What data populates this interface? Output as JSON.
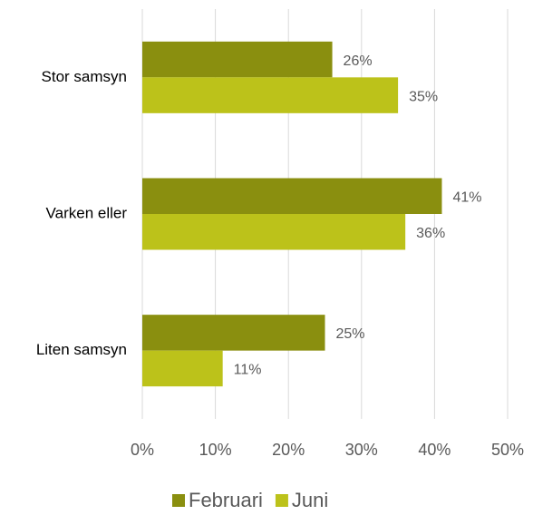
{
  "chart_data": {
    "type": "bar",
    "orientation": "horizontal",
    "categories": [
      "Stor samsyn",
      "Varken eller",
      "Liten samsyn"
    ],
    "series": [
      {
        "name": "Februari",
        "color": "#8a8f0f",
        "values": [
          26,
          41,
          25
        ],
        "value_labels": [
          "26%",
          "41%",
          "25%"
        ]
      },
      {
        "name": "Juni",
        "color": "#bcc21a",
        "values": [
          35,
          36,
          11
        ],
        "value_labels": [
          "35%",
          "36%",
          "11%"
        ]
      }
    ],
    "xlim": [
      0,
      50
    ],
    "xticks": [
      {
        "value": 0,
        "label": "0%"
      },
      {
        "value": 10,
        "label": "10%"
      },
      {
        "value": 20,
        "label": "20%"
      },
      {
        "value": 30,
        "label": "30%"
      },
      {
        "value": 40,
        "label": "40%"
      },
      {
        "value": 50,
        "label": "50%"
      }
    ],
    "grid": true,
    "legend": "bottom"
  }
}
